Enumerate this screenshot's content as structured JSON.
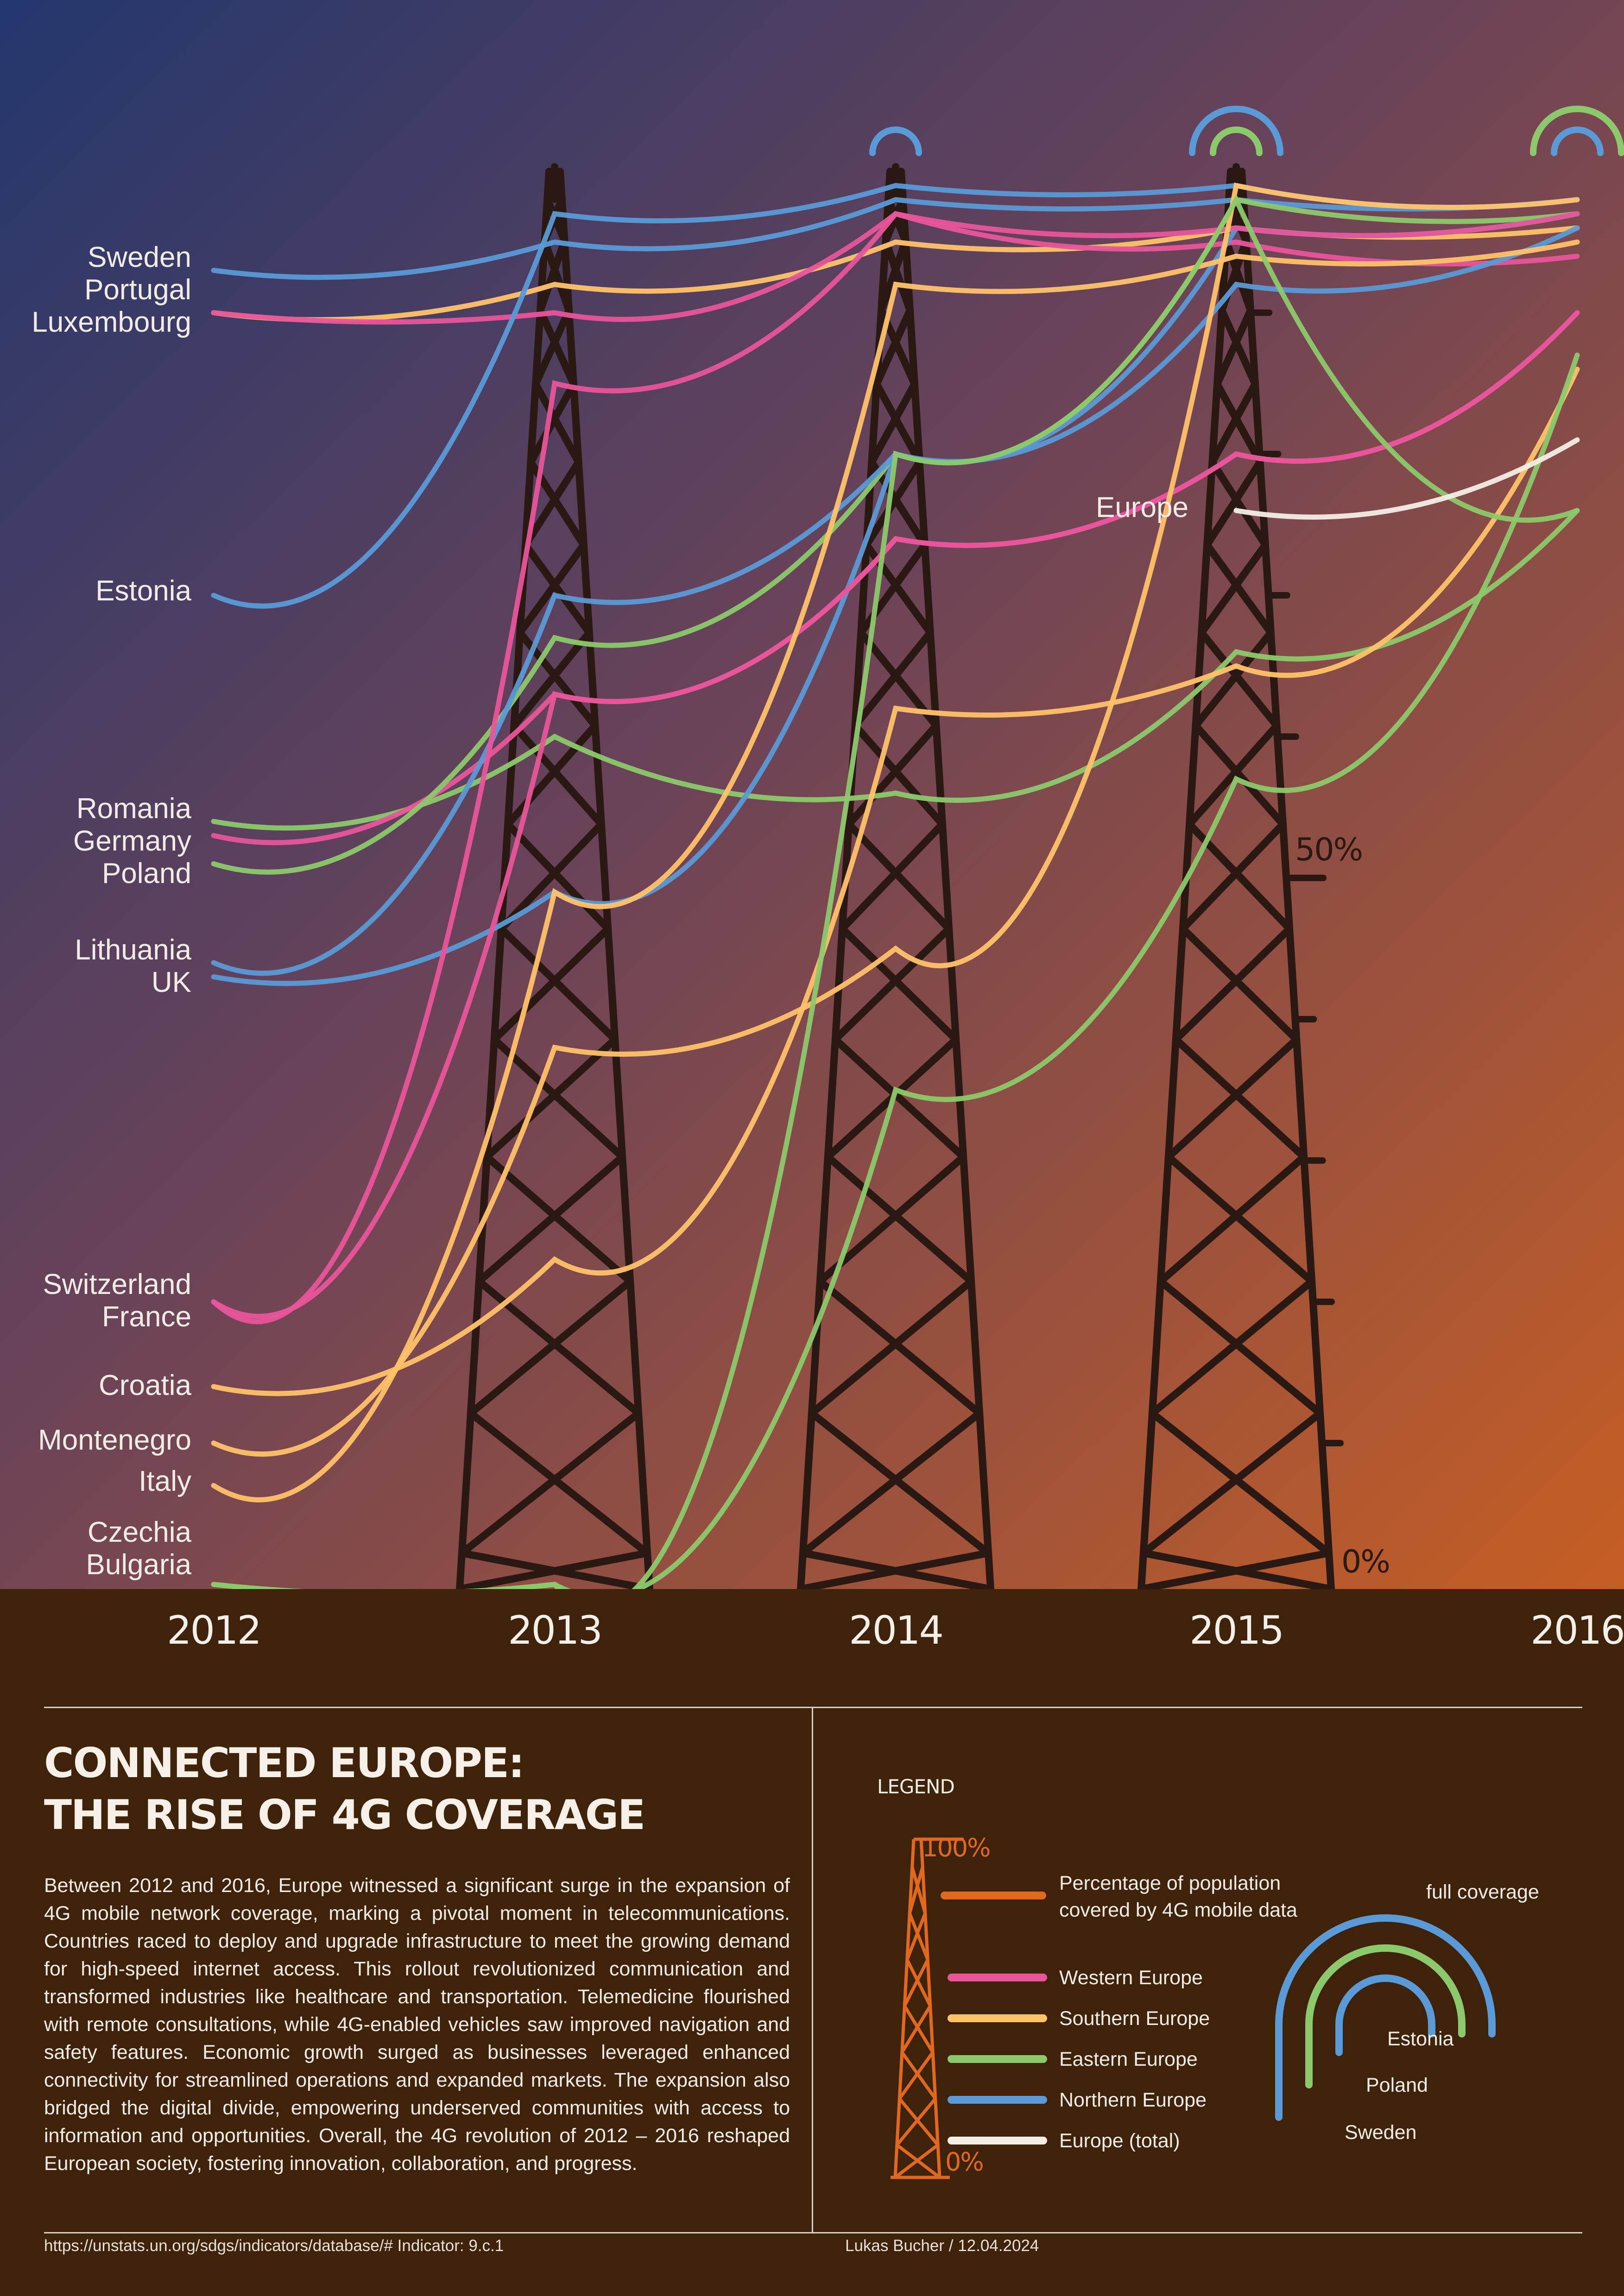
{
  "colors": {
    "Western Europe": "#e8559a",
    "Southern Europe": "#ffc36a",
    "Eastern Europe": "#8cc96c",
    "Northern Europe": "#5a9ad6",
    "Europe (total)": "#f3eee6",
    "tower": "#2a1812",
    "legend_tower": "#e0691e",
    "sky_top": "#23376e",
    "sky_mid": "#6b4358",
    "sky_bottom": "#c65e24",
    "panel_bg": "#3f220a"
  },
  "chart_data": {
    "type": "line",
    "x": [
      "2012",
      "2013",
      "2014",
      "2015",
      "2016"
    ],
    "ylim": [
      0,
      100
    ],
    "y_ticks": [
      {
        "value": 50,
        "label": "50%"
      },
      {
        "value": 0,
        "label": "0%"
      }
    ],
    "series": [
      {
        "name": "Sweden",
        "region": "Northern Europe",
        "values": [
          93,
          95,
          98,
          98,
          98
        ]
      },
      {
        "name": "Portugal",
        "region": "Southern Europe",
        "values": [
          90,
          92,
          95,
          96,
          96
        ]
      },
      {
        "name": "Luxembourg",
        "region": "Western Europe",
        "values": [
          90,
          90,
          97,
          95,
          94
        ]
      },
      {
        "name": "Estonia",
        "region": "Northern Europe",
        "values": [
          70,
          97,
          99,
          99,
          98
        ]
      },
      {
        "name": "Romania",
        "region": "Eastern Europe",
        "values": [
          54,
          60,
          56,
          66,
          76
        ]
      },
      {
        "name": "Germany",
        "region": "Western Europe",
        "values": [
          53,
          63,
          74,
          80,
          90
        ]
      },
      {
        "name": "Poland",
        "region": "Eastern Europe",
        "values": [
          51,
          67,
          80,
          98,
          97
        ]
      },
      {
        "name": "Lithuania",
        "region": "Northern Europe",
        "values": [
          44,
          70,
          80,
          92,
          96
        ]
      },
      {
        "name": "UK",
        "region": "Northern Europe",
        "values": [
          43,
          49,
          80,
          96,
          97
        ]
      },
      {
        "name": "Switzerland",
        "region": "Western Europe",
        "values": [
          20,
          85,
          97,
          96,
          97
        ]
      },
      {
        "name": "France",
        "region": "Western Europe",
        "values": [
          20,
          63,
          74,
          80,
          90
        ]
      },
      {
        "name": "Croatia",
        "region": "Southern Europe",
        "values": [
          14,
          23,
          62,
          65,
          86
        ]
      },
      {
        "name": "Montenegro",
        "region": "Southern Europe",
        "values": [
          10,
          38,
          45,
          99,
          98
        ]
      },
      {
        "name": "Italy",
        "region": "Southern Europe",
        "values": [
          7,
          49,
          92,
          94,
          95
        ]
      },
      {
        "name": "Czechia",
        "region": "Eastern Europe",
        "values": [
          0,
          0,
          35,
          57,
          87
        ]
      },
      {
        "name": "Bulgaria",
        "region": "Eastern Europe",
        "values": [
          0,
          0,
          80,
          98,
          76
        ]
      },
      {
        "name": "Europe",
        "region": "Europe (total)",
        "values": [
          null,
          null,
          null,
          76,
          81
        ]
      }
    ],
    "annotations": [
      {
        "label": "Europe",
        "at": "2015"
      }
    ],
    "full_coverage_arcs": [
      {
        "x": "2014",
        "regions": [
          "Northern Europe"
        ]
      },
      {
        "x": "2015",
        "regions": [
          "Eastern Europe",
          "Northern Europe"
        ]
      },
      {
        "x": "2016",
        "regions": [
          "Northern Europe",
          "Eastern Europe"
        ]
      }
    ]
  },
  "labels": [
    {
      "text": "Sweden",
      "top": 0
    },
    {
      "text": "Portugal",
      "top": 0
    },
    {
      "text": "Luxembourg",
      "top": 0
    },
    {
      "text": "Estonia",
      "top": 0
    },
    {
      "text": "Romania",
      "top": 0
    },
    {
      "text": "Germany",
      "top": 0
    },
    {
      "text": "Poland",
      "top": 0
    },
    {
      "text": "Lithuania",
      "top": 0
    },
    {
      "text": "UK",
      "top": 0
    },
    {
      "text": "Switzerland",
      "top": 0
    },
    {
      "text": "France",
      "top": 0
    },
    {
      "text": "Croatia",
      "top": 0
    },
    {
      "text": "Montenegro",
      "top": 0
    },
    {
      "text": "Italy",
      "top": 0
    },
    {
      "text": "Czechia",
      "top": 0
    },
    {
      "text": "Bulgaria",
      "top": 0
    }
  ],
  "europe_label": "Europe",
  "years": [
    "2012",
    "2013",
    "2014",
    "2015",
    "2016"
  ],
  "title": "CONNECTED EUROPE:\nTHE RISE OF 4G COVERAGE",
  "description": "Between 2012 and 2016, Europe witnessed a significant surge in the expansion of 4G mobile network coverage, marking a pivotal moment in telecommunications. Countries raced to deploy and upgrade infrastructure to meet the growing demand for high-speed internet access. This rollout revolutionized communication and transformed industries like healthcare and transportation. Telemedicine flourished with remote consultations, while 4G-enabled vehicles saw improved navigation and safety features. Economic growth surged as businesses leveraged enhanced connectivity for streamlined operations and expanded markets. The expansion also bridged the digital divide, empowering underserved communities with access to information and opportunities. Overall, the 4G revolution of 2012 – 2016 reshaped European society, fostering innovation, collaboration, and progress.",
  "legend": {
    "title": "LEGEND",
    "tower_top": "100%",
    "tower_bottom": "0%",
    "tower_caption_1": "Percentage of population",
    "tower_caption_2": "covered by 4G mobile data",
    "regions": [
      {
        "label": "Western Europe",
        "color": "#e8559a"
      },
      {
        "label": "Southern Europe",
        "color": "#ffc36a"
      },
      {
        "label": "Eastern Europe",
        "color": "#8cc96c"
      },
      {
        "label": "Northern Europe",
        "color": "#5a9ad6"
      },
      {
        "label": "Europe (total)",
        "color": "#f3eee6"
      }
    ],
    "full_coverage": "full coverage",
    "arc_examples": [
      {
        "label": "Estonia",
        "color": "#5a9ad6"
      },
      {
        "label": "Poland",
        "color": "#8cc96c"
      },
      {
        "label": "Sweden",
        "color": "#5a9ad6"
      }
    ]
  },
  "footer": {
    "source": "https://unstats.un.org/sdgs/indicators/database/# Indicator: 9.c.1",
    "author": "Lukas Bucher / 12.04.2024"
  }
}
